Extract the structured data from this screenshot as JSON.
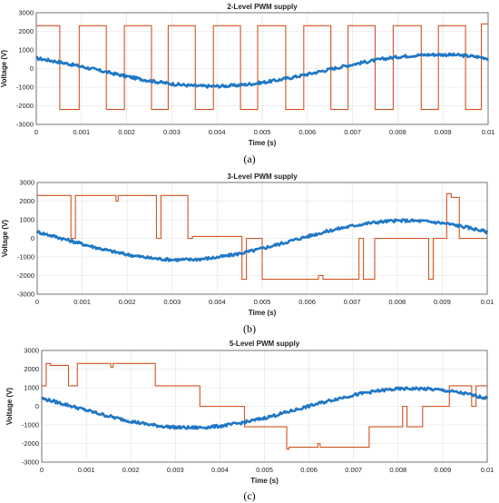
{
  "colors": {
    "pwm": "#d2541f",
    "sine": "#1f77c4",
    "grid": "#e0e0e0",
    "axis": "#555555"
  },
  "chart_data": [
    {
      "type": "line",
      "title": "2-Level PWM supply",
      "xlabel": "Time (s)",
      "ylabel": "Voltage (V)",
      "caption": "(a)",
      "xlim": [
        0,
        0.01
      ],
      "ylim": [
        -3000,
        3000
      ],
      "grid": true,
      "xticks": [
        "0",
        "0.001",
        "0.002",
        "0.003",
        "0.004",
        "0.005",
        "0.006",
        "0.007",
        "0.008",
        "0.009",
        "0.01"
      ],
      "yticks": [
        "-3000",
        "-2000",
        "-1000",
        "0",
        "1000",
        "2000",
        "3000"
      ],
      "series": [
        {
          "kind": "pwm",
          "x": [
            0,
            0.00052,
            0.00095,
            0.00155,
            0.00195,
            0.00255,
            0.00292,
            0.00352,
            0.00392,
            0.00452,
            0.0049,
            0.00552,
            0.00592,
            0.00652,
            0.0069,
            0.0075,
            0.0079,
            0.00852,
            0.0089,
            0.0095,
            0.00985,
            0.01
          ],
          "levels": [
            2300,
            -2200,
            2300,
            -2200,
            2300,
            -2200,
            2300,
            -2200,
            2300,
            -2200,
            2300,
            -2200,
            2300,
            -2200,
            2300,
            -2200,
            2300,
            -2200,
            2300,
            -2200,
            2400
          ]
        },
        {
          "kind": "sine",
          "amplitude": 850,
          "offset": -100,
          "phase_deg": 130,
          "freq_hz": 100
        }
      ]
    },
    {
      "type": "line",
      "title": "3-Level PWM supply",
      "xlabel": "Time (s)",
      "ylabel": "Voltage (V)",
      "caption": "(b)",
      "xlim": [
        0,
        0.01
      ],
      "ylim": [
        -3000,
        3000
      ],
      "grid": true,
      "xticks": [
        "0",
        "0.001",
        "0.002",
        "0.003",
        "0.004",
        "0.005",
        "0.006",
        "0.007",
        "0.008",
        "0.009",
        "0.01"
      ],
      "yticks": [
        "-3000",
        "-2000",
        "-1000",
        "0",
        "1000",
        "2000",
        "3000"
      ],
      "series": [
        {
          "kind": "pwm",
          "x": [
            0,
            0.00075,
            0.00085,
            0.00175,
            0.0018,
            0.00265,
            0.00275,
            0.00335,
            0.00345,
            0.00455,
            0.00465,
            0.005,
            0.0052,
            0.00625,
            0.00635,
            0.00715,
            0.00725,
            0.0074,
            0.0075,
            0.0079,
            0.008,
            0.0087,
            0.0088,
            0.0091,
            0.0092,
            0.00938,
            0.00945,
            0.01
          ],
          "levels": [
            2300,
            0,
            2300,
            2000,
            2300,
            0,
            2300,
            0,
            100,
            -2200,
            0,
            -2200,
            -2200,
            -2000,
            -2200,
            0,
            -2200,
            -2200,
            0,
            0,
            0,
            -2200,
            0,
            2400,
            2200,
            0,
            0
          ]
        },
        {
          "kind": "sine",
          "amplitude": 1050,
          "offset": -100,
          "phase_deg": 155,
          "freq_hz": 100
        }
      ]
    },
    {
      "type": "line",
      "title": "5-Level PWM supply",
      "xlabel": "Time (s)",
      "ylabel": "Voltage (V)",
      "caption": "(c)",
      "xlim": [
        0,
        0.01
      ],
      "ylim": [
        -3000,
        3000
      ],
      "grid": true,
      "xticks": [
        "0",
        "0.001",
        "0.002",
        "0.003",
        "0.004",
        "0.005",
        "0.006",
        "0.007",
        "0.008",
        "0.009",
        "0.01"
      ],
      "yticks": [
        "-3000",
        "-2000",
        "-1000",
        "0",
        "1000",
        "2000",
        "3000"
      ],
      "series": [
        {
          "kind": "pwm",
          "x": [
            0,
            0.0001,
            0.0002,
            0.0006,
            0.0008,
            0.00155,
            0.0016,
            0.00255,
            0.00355,
            0.00455,
            0.00465,
            0.0055,
            0.00555,
            0.0062,
            0.00625,
            0.00735,
            0.00755,
            0.0081,
            0.0082,
            0.00845,
            0.00855,
            0.00915,
            0.0093,
            0.00965,
            0.00975,
            0.01
          ],
          "levels": [
            1100,
            2300,
            2200,
            1100,
            2300,
            2100,
            2300,
            1100,
            0,
            -1100,
            -1100,
            -2300,
            -2200,
            -2000,
            -2200,
            -1100,
            -1100,
            0,
            -1100,
            -1100,
            0,
            1100,
            1100,
            0,
            1100
          ]
        },
        {
          "kind": "sine",
          "amplitude": 1050,
          "offset": -100,
          "phase_deg": 150,
          "freq_hz": 100
        }
      ]
    }
  ]
}
